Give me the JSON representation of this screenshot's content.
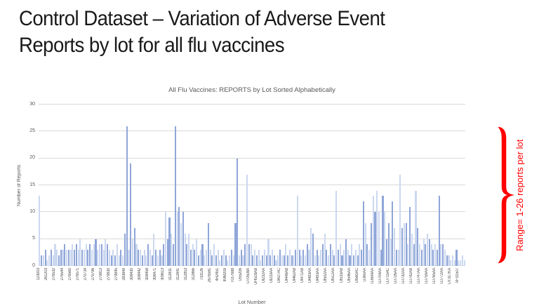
{
  "slide": {
    "title_line1": "Control Dataset – Variation of Adverse Event",
    "title_line2": "Reports by lot for all flu vaccines"
  },
  "chart_data": {
    "type": "bar",
    "title": "All Flu Vaccines: REPORTS by Lot Sorted Alphabetically",
    "xlabel": "Lot Number",
    "ylabel": "Number of Reports",
    "ylim": [
      0,
      30
    ],
    "ytick_interval": 5,
    "grid": true,
    "legend": "none",
    "x_label_every_n_bars": 4,
    "x_tick_labels": [
      "123003",
      "261203",
      "276532",
      "276544",
      "276560",
      "276571",
      "279734",
      "279796",
      "279813",
      "279830",
      "279845",
      "283849",
      "308430",
      "308442",
      "308458",
      "308471",
      "309613",
      "312831",
      "312841",
      "312853",
      "312866",
      "733126",
      "2676581",
      "4H2451",
      "IMM209",
      "T017688",
      "U55206",
      "U70508A",
      "UH518AB",
      "UI232AA",
      "UI233AA",
      "UI427AC",
      "UI448AB",
      "UI462AB",
      "UI471AB",
      "UI483AA",
      "UI493AA",
      "UI502AA",
      "UI512AA",
      "UI533AB",
      "UI546AA",
      "UI560AC",
      "UJ60AA",
      "UJ694AA",
      "UJ704AA",
      "UJ715AC",
      "UJ726AA",
      "UJ732AA",
      "UJ742AB",
      "UJ747AA",
      "UJ759AA",
      "UJ765AA",
      "UJ772AA",
      "UT317KA",
      "XF31507"
    ],
    "values": [
      13,
      2,
      2,
      3,
      1,
      2,
      3,
      2,
      4,
      3,
      2,
      3,
      3,
      4,
      3,
      3,
      3,
      4,
      3,
      4,
      3,
      5,
      3,
      3,
      4,
      3,
      4,
      3,
      4,
      5,
      3,
      4,
      4,
      3,
      5,
      4,
      3,
      2,
      3,
      2,
      4,
      2,
      3,
      2,
      6,
      26,
      3,
      19,
      5,
      7,
      4,
      3,
      3,
      2,
      3,
      2,
      4,
      3,
      2,
      6,
      3,
      2,
      3,
      2,
      4,
      10,
      5,
      9,
      6,
      4,
      26,
      10,
      11,
      8,
      10,
      6,
      4,
      6,
      3,
      4,
      3,
      5,
      2,
      3,
      4,
      2,
      3,
      8,
      3,
      2,
      4,
      2,
      3,
      1,
      2,
      3,
      2,
      1,
      2,
      3,
      2,
      8,
      20,
      2,
      3,
      2,
      4,
      17,
      4,
      4,
      2,
      3,
      2,
      3,
      1,
      2,
      3,
      2,
      5,
      2,
      3,
      2,
      1,
      2,
      3,
      2,
      2,
      4,
      2,
      3,
      2,
      2,
      3,
      13,
      3,
      2,
      3,
      2,
      4,
      3,
      7,
      6,
      2,
      3,
      2,
      3,
      4,
      6,
      3,
      2,
      4,
      3,
      2,
      14,
      3,
      4,
      2,
      3,
      5,
      3,
      2,
      4,
      2,
      3,
      2,
      4,
      3,
      12,
      8,
      4,
      3,
      8,
      13,
      10,
      14,
      10,
      3,
      13,
      10,
      5,
      8,
      5,
      12,
      7,
      3,
      3,
      17,
      7,
      8,
      8,
      4,
      11,
      6,
      4,
      14,
      7,
      4,
      3,
      5,
      4,
      6,
      5,
      4,
      3,
      4,
      3,
      13,
      4,
      4,
      3,
      2,
      2,
      1,
      2,
      1,
      3,
      1,
      1,
      2,
      1
    ],
    "dark_indices": [
      1,
      3,
      6,
      10,
      11,
      13,
      15,
      18,
      19,
      22,
      25,
      26,
      29,
      32,
      35,
      37,
      39,
      42,
      44,
      45,
      47,
      49,
      51,
      53,
      56,
      58,
      60,
      62,
      64,
      66,
      67,
      69,
      70,
      72,
      74,
      76,
      78,
      80,
      82,
      84,
      87,
      89,
      91,
      94,
      96,
      99,
      101,
      102,
      104,
      106,
      108,
      110,
      112,
      115,
      117,
      119,
      121,
      124,
      126,
      128,
      130,
      132,
      134,
      136,
      138,
      141,
      143,
      146,
      148,
      150,
      152,
      154,
      156,
      158,
      160,
      162,
      164,
      166,
      167,
      169,
      171,
      173,
      176,
      177,
      179,
      180,
      182,
      184,
      187,
      189,
      191,
      193,
      195,
      197,
      199,
      201,
      203,
      205,
      206,
      208,
      210,
      215
    ],
    "colors": {
      "bar_light": "#ccd8f0",
      "bar_dark": "#8fa6d8",
      "gridline": "#d9d9d9",
      "axis_text": "#595959",
      "chart_title_text": "#595959"
    }
  },
  "annotation": {
    "label": "Range= 1-26 reports per lot",
    "color": "#ff0000",
    "shape": "right-pointing curly brace spanning plot height"
  }
}
